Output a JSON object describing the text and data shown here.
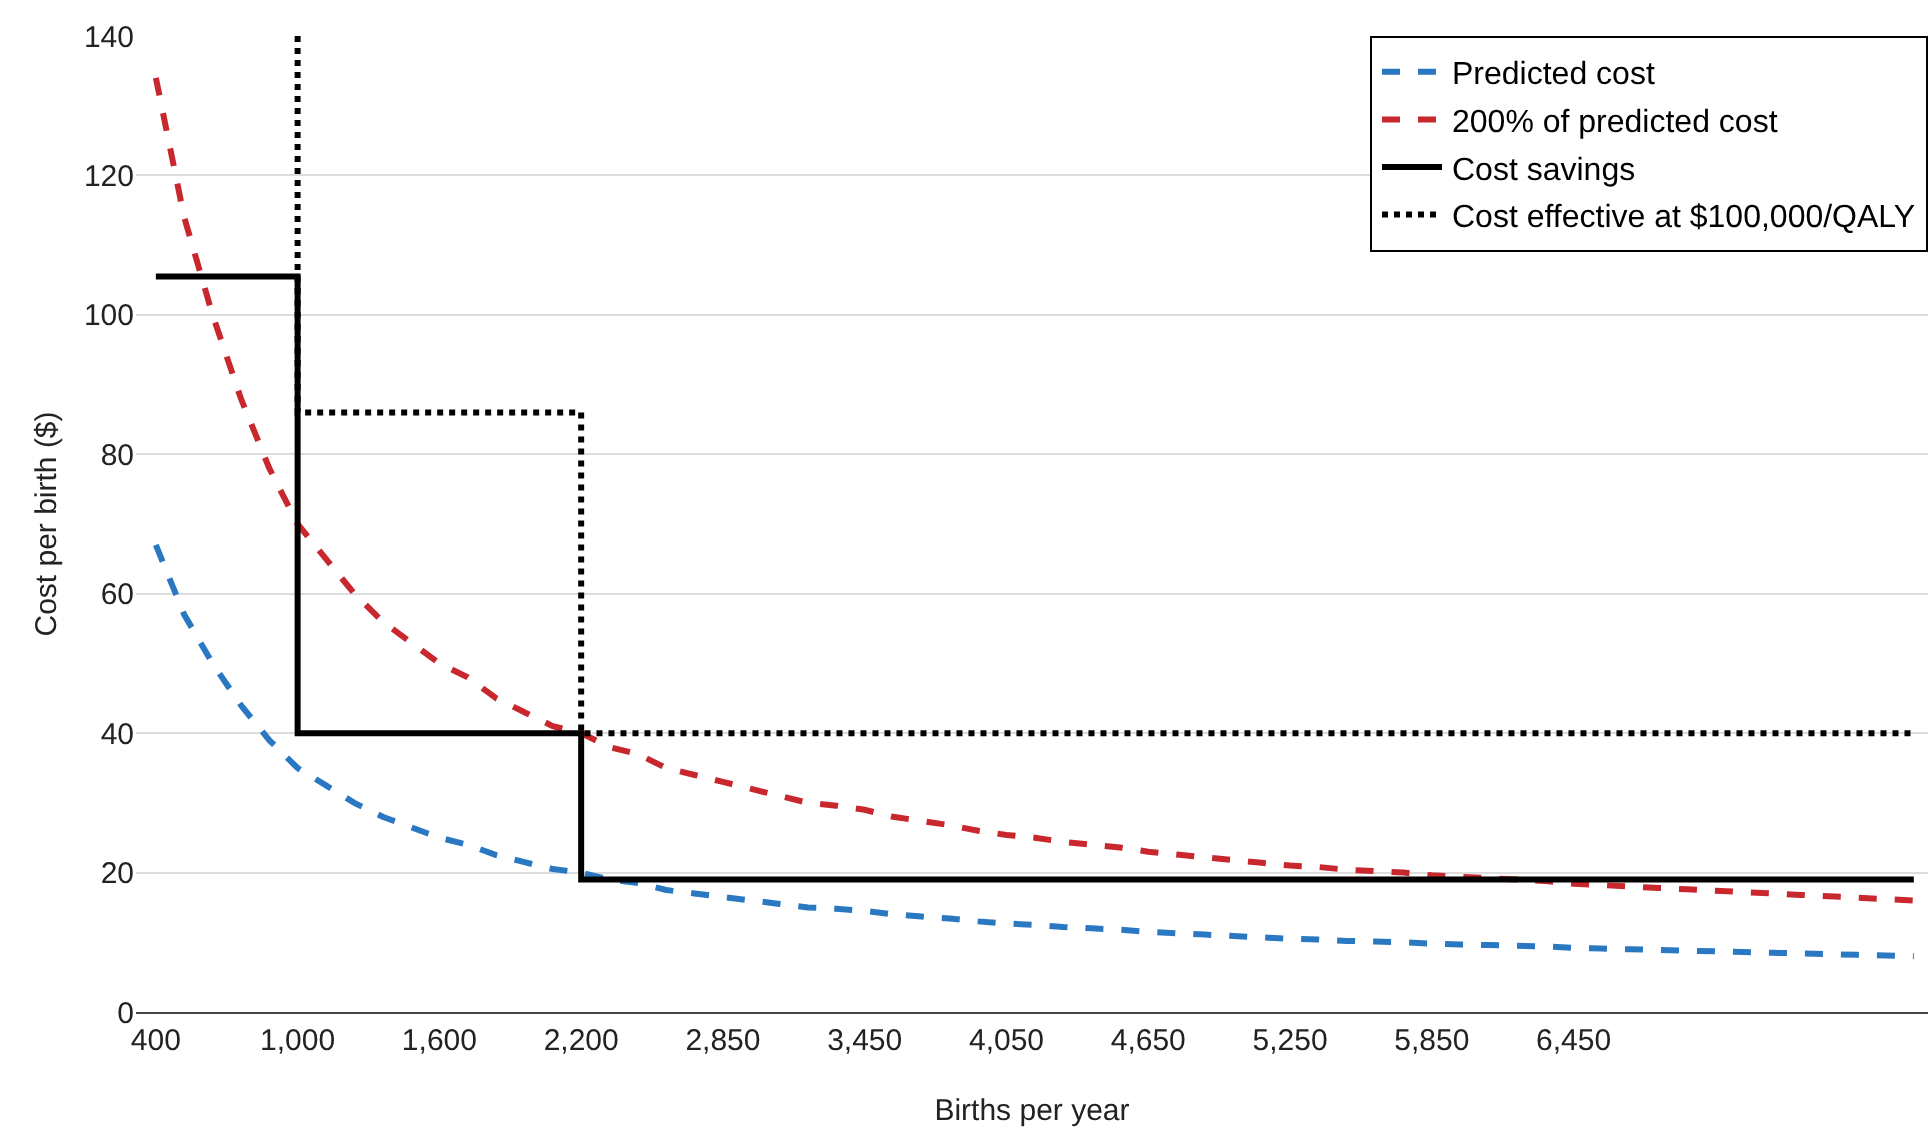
{
  "chart_data": {
    "type": "line",
    "xlabel": "Births per year",
    "ylabel": "Cost per birth ($)",
    "categories": [
      "400",
      null,
      null,
      null,
      null,
      "1,000",
      null,
      null,
      null,
      null,
      "1,600",
      null,
      null,
      null,
      null,
      "2,200",
      null,
      null,
      null,
      null,
      "2,850",
      null,
      null,
      null,
      null,
      "3,450",
      null,
      null,
      null,
      null,
      "4,050",
      null,
      null,
      null,
      null,
      "4,650",
      null,
      null,
      null,
      null,
      "5,250",
      null,
      null,
      null,
      null,
      "5,850",
      null,
      null,
      null,
      null,
      "6,450",
      null,
      null,
      null,
      null,
      null,
      null,
      null,
      null,
      null,
      null,
      null,
      null
    ],
    "ylim": [
      0,
      140
    ],
    "yticks": [
      0,
      20,
      40,
      60,
      80,
      100,
      120,
      140
    ],
    "grid": "y",
    "legend": "top right",
    "series": [
      {
        "name": "Predicted cost",
        "color": "#2a78c2",
        "line_style": "dashed",
        "values": [
          67,
          57,
          50,
          44,
          39,
          35,
          32.5,
          30,
          28,
          26.5,
          25,
          24,
          22.5,
          21.5,
          20.5,
          20,
          19,
          18.5,
          17.5,
          17,
          16.5,
          16,
          15.5,
          15,
          14.8,
          14.5,
          14,
          13.7,
          13.4,
          13,
          12.7,
          12.5,
          12.2,
          12,
          11.8,
          11.5,
          11.3,
          11.1,
          10.9,
          10.7,
          10.5,
          10.4,
          10.2,
          10.1,
          10,
          9.8,
          9.7,
          9.6,
          9.5,
          9.4,
          9.2,
          9.1,
          9,
          8.9,
          8.8,
          8.7,
          8.6,
          8.5,
          8.4,
          8.3,
          8.2,
          8.1,
          8
        ]
      },
      {
        "name": "200% of predicted cost",
        "color": "#c8282d",
        "line_style": "dashed",
        "values": [
          134,
          114,
          100,
          88,
          78,
          70,
          65,
          60,
          56,
          53,
          50,
          48,
          45,
          43,
          41,
          40,
          38,
          37,
          35,
          34,
          33,
          32,
          31,
          30,
          29.6,
          29,
          28,
          27.4,
          26.8,
          26,
          25.4,
          25,
          24.4,
          24,
          23.6,
          23,
          22.6,
          22.2,
          21.8,
          21.4,
          21,
          20.8,
          20.4,
          20.2,
          20,
          19.6,
          19.4,
          19.2,
          19,
          18.8,
          18.4,
          18.2,
          18,
          17.8,
          17.6,
          17.4,
          17.2,
          17,
          16.8,
          16.6,
          16.4,
          16.2,
          16
        ]
      },
      {
        "name": "Cost savings",
        "type": "step",
        "color": "#000000",
        "line_style": "solid",
        "values": [
          105.5,
          105.5,
          105.5,
          105.5,
          105.5,
          105.5,
          40,
          40,
          40,
          40,
          40,
          40,
          40,
          40,
          40,
          40,
          19,
          19,
          19,
          19,
          19,
          19,
          19,
          19,
          19,
          19,
          19,
          19,
          19,
          19,
          19,
          19,
          19,
          19,
          19,
          19,
          19,
          19,
          19,
          19,
          19,
          19,
          19,
          19,
          19,
          19,
          19,
          19,
          19,
          19,
          19,
          19,
          19,
          19,
          19,
          19,
          19,
          19,
          19,
          19,
          19,
          19,
          19
        ]
      },
      {
        "name": "Cost effective at $100,000/QALY",
        "type": "step",
        "color": "#000000",
        "line_style": "dotted",
        "values": [
          null,
          null,
          null,
          null,
          null,
          140,
          86,
          86,
          86,
          86,
          86,
          86,
          86,
          86,
          86,
          86,
          40,
          40,
          40,
          40,
          40,
          40,
          40,
          40,
          40,
          40,
          40,
          40,
          40,
          40,
          40,
          40,
          40,
          40,
          40,
          40,
          40,
          40,
          40,
          40,
          40,
          40,
          40,
          40,
          40,
          40,
          40,
          40,
          40,
          40,
          40,
          40,
          40,
          40,
          40,
          40,
          40,
          40,
          40,
          40,
          40,
          40,
          40
        ]
      }
    ]
  }
}
